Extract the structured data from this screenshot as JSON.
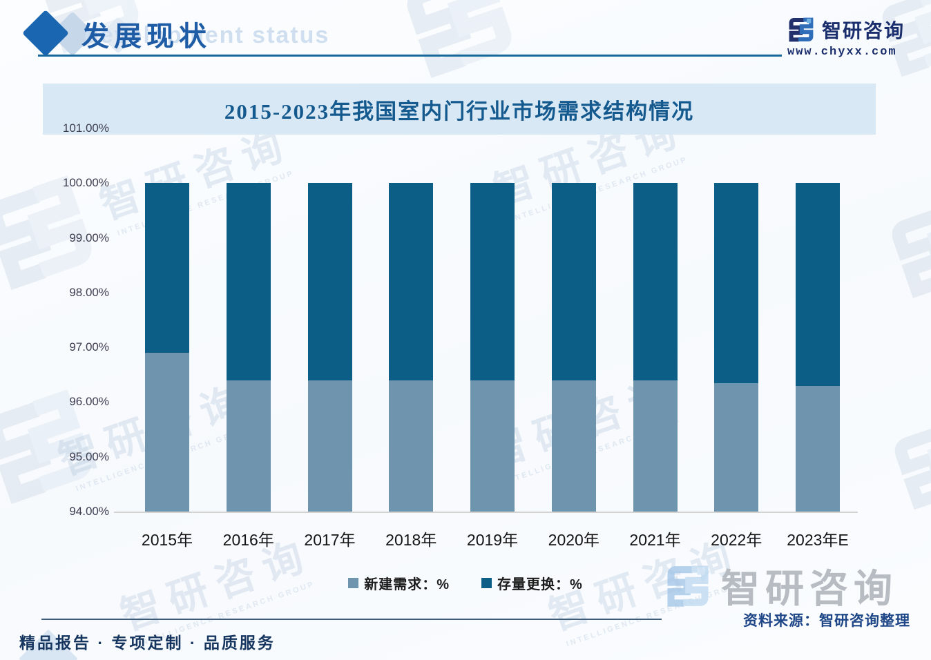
{
  "header": {
    "title": "发展现状",
    "ghost_title": "development status",
    "logo_text": "智研咨询",
    "website": "www.chyxx.com"
  },
  "watermark": {
    "text": "智研咨询",
    "subtext": "INTELLIGENCE RESEARCH GROUP"
  },
  "chart_data": {
    "type": "bar",
    "stacked": true,
    "title": "2015-2023年我国室内门行业市场需求结构情况",
    "categories": [
      "2015年",
      "2016年",
      "2017年",
      "2018年",
      "2019年",
      "2020年",
      "2021年",
      "2022年",
      "2023年E"
    ],
    "series": [
      {
        "name": "新建需求：%",
        "color": "#6f94ad",
        "values": [
          96.9,
          96.4,
          96.4,
          96.4,
          96.4,
          96.4,
          96.4,
          96.35,
          96.3
        ]
      },
      {
        "name": "存量更换：%",
        "color": "#0d5e87",
        "values": [
          3.1,
          3.6,
          3.6,
          3.6,
          3.6,
          3.6,
          3.6,
          3.65,
          3.7
        ]
      }
    ],
    "ylabel": "",
    "xlabel": "",
    "ylim": [
      94,
      101
    ],
    "y_tick_labels": [
      "101.00%",
      "100.00%",
      "99.00%",
      "98.00%",
      "97.00%",
      "96.00%",
      "95.00%",
      "94.00%"
    ],
    "grid": false,
    "legend_position": "bottom"
  },
  "footer": {
    "watermark_logo_text": "智研咨询",
    "source": "资料来源：智研咨询整理",
    "tagline": "精品报告 · 专项定制 · 品质服务"
  },
  "colors": {
    "new_demand_bar": "#6f94ad",
    "replacement_bar": "#0d5e87",
    "title_band_bg": "#d9e8f5",
    "chart_title_text": "#155a8e",
    "header_title_text": "#1e5ca6",
    "header_rule": "#15689a",
    "logo_navy": "#22306b",
    "logo_blue": "#2f6db8",
    "footer_text_navy": "#16365f",
    "source_text_blue": "#1f4788"
  }
}
